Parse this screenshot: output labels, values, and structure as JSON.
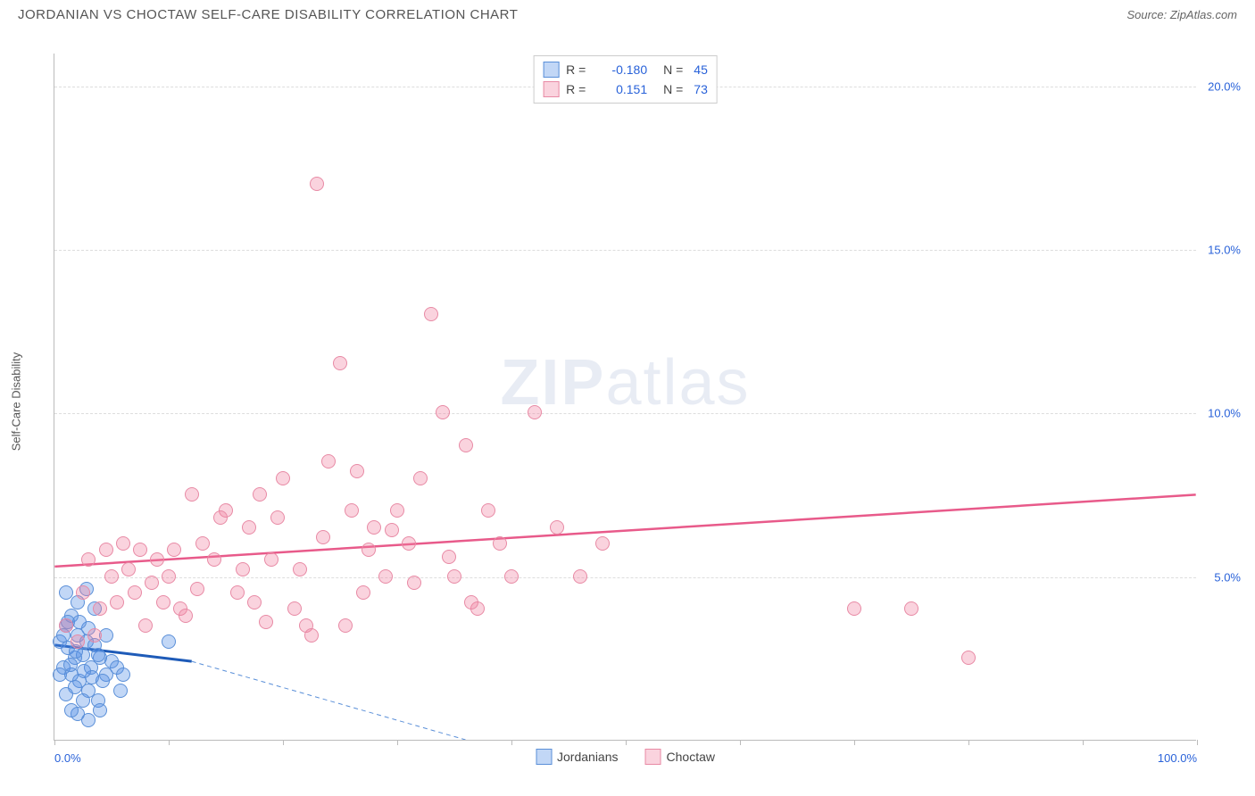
{
  "header": {
    "title": "JORDANIAN VS CHOCTAW SELF-CARE DISABILITY CORRELATION CHART",
    "source": "Source: ZipAtlas.com"
  },
  "chart": {
    "type": "scatter",
    "ylabel": "Self-Care Disability",
    "xlim": [
      0,
      100
    ],
    "ylim": [
      0,
      21
    ],
    "background_color": "#ffffff",
    "grid_color": "#dddddd",
    "axis_color": "#bbbbbb",
    "ytick_labels": [
      "5.0%",
      "10.0%",
      "15.0%",
      "20.0%"
    ],
    "ytick_values": [
      5,
      10,
      15,
      20
    ],
    "xtick_values": [
      0,
      10,
      20,
      30,
      40,
      50,
      60,
      70,
      80,
      90,
      100
    ],
    "xtick_labels_shown": {
      "0": "0.0%",
      "100": "100.0%"
    },
    "marker_radius": 8,
    "marker_stroke_width": 1,
    "series": [
      {
        "name": "Jordanians",
        "fill_color": "rgba(80, 140, 230, 0.35)",
        "stroke_color": "#5a8fd8",
        "R": "-0.180",
        "N": "45",
        "trend": {
          "x1": 0,
          "y1": 2.9,
          "x2": 12,
          "y2": 2.4,
          "color": "#1e5bb8",
          "width": 3,
          "dash": ""
        },
        "trend_extrap": {
          "x1": 12,
          "y1": 2.4,
          "x2": 36,
          "y2": 0.0,
          "color": "#5a8fd8",
          "width": 1,
          "dash": "5,4"
        },
        "points": [
          [
            0.5,
            3.0
          ],
          [
            0.8,
            2.2
          ],
          [
            1.0,
            3.5
          ],
          [
            1.2,
            2.8
          ],
          [
            1.5,
            2.0
          ],
          [
            1.8,
            2.5
          ],
          [
            2.0,
            3.2
          ],
          [
            2.2,
            1.8
          ],
          [
            2.5,
            2.6
          ],
          [
            2.8,
            3.0
          ],
          [
            3.0,
            1.5
          ],
          [
            3.2,
            2.2
          ],
          [
            3.5,
            2.9
          ],
          [
            3.8,
            1.2
          ],
          [
            4.0,
            2.5
          ],
          [
            1.0,
            1.4
          ],
          [
            1.5,
            3.8
          ],
          [
            4.5,
            2.0
          ],
          [
            5.0,
            2.4
          ],
          [
            2.0,
            4.2
          ],
          [
            3.5,
            4.0
          ],
          [
            1.0,
            4.5
          ],
          [
            2.5,
            1.2
          ],
          [
            0.5,
            2.0
          ],
          [
            1.8,
            1.6
          ],
          [
            4.2,
            1.8
          ],
          [
            3.0,
            3.4
          ],
          [
            5.5,
            2.2
          ],
          [
            2.0,
            0.8
          ],
          [
            3.0,
            0.6
          ],
          [
            4.0,
            0.9
          ],
          [
            1.5,
            0.9
          ],
          [
            6.0,
            2.0
          ],
          [
            2.8,
            4.6
          ],
          [
            1.2,
            3.6
          ],
          [
            0.8,
            3.2
          ],
          [
            2.2,
            3.6
          ],
          [
            3.8,
            2.6
          ],
          [
            10.0,
            3.0
          ],
          [
            4.5,
            3.2
          ],
          [
            5.8,
            1.5
          ],
          [
            3.3,
            1.9
          ],
          [
            2.6,
            2.1
          ],
          [
            1.9,
            2.7
          ],
          [
            1.4,
            2.3
          ]
        ]
      },
      {
        "name": "Choctaw",
        "fill_color": "rgba(240, 130, 160, 0.35)",
        "stroke_color": "#e88aa5",
        "R": "0.151",
        "N": "73",
        "trend": {
          "x1": 0,
          "y1": 5.3,
          "x2": 100,
          "y2": 7.5,
          "color": "#e85a8a",
          "width": 2.5,
          "dash": ""
        },
        "points": [
          [
            1.0,
            3.5
          ],
          [
            2.0,
            3.0
          ],
          [
            3.0,
            5.5
          ],
          [
            4.0,
            4.0
          ],
          [
            5.0,
            5.0
          ],
          [
            6.0,
            6.0
          ],
          [
            7.0,
            4.5
          ],
          [
            8.0,
            3.5
          ],
          [
            9.0,
            5.5
          ],
          [
            10.0,
            5.0
          ],
          [
            11.0,
            4.0
          ],
          [
            12.0,
            7.5
          ],
          [
            13.0,
            6.0
          ],
          [
            14.0,
            5.5
          ],
          [
            15.0,
            7.0
          ],
          [
            16.0,
            4.5
          ],
          [
            17.0,
            6.5
          ],
          [
            18.0,
            7.5
          ],
          [
            19.0,
            5.5
          ],
          [
            20.0,
            8.0
          ],
          [
            21.0,
            4.0
          ],
          [
            22.0,
            3.5
          ],
          [
            23.0,
            17.0
          ],
          [
            24.0,
            8.5
          ],
          [
            25.0,
            11.5
          ],
          [
            26.0,
            7.0
          ],
          [
            27.0,
            4.5
          ],
          [
            28.0,
            6.5
          ],
          [
            29.0,
            5.0
          ],
          [
            30.0,
            7.0
          ],
          [
            31.0,
            6.0
          ],
          [
            32.0,
            8.0
          ],
          [
            33.0,
            13.0
          ],
          [
            34.0,
            10.0
          ],
          [
            35.0,
            5.0
          ],
          [
            36.0,
            9.0
          ],
          [
            37.0,
            4.0
          ],
          [
            38.0,
            7.0
          ],
          [
            39.0,
            6.0
          ],
          [
            40.0,
            5.0
          ],
          [
            42.0,
            10.0
          ],
          [
            44.0,
            6.5
          ],
          [
            46.0,
            5.0
          ],
          [
            48.0,
            6.0
          ],
          [
            75.0,
            4.0
          ],
          [
            80.0,
            2.5
          ],
          [
            70.0,
            4.0
          ],
          [
            2.5,
            4.5
          ],
          [
            3.5,
            3.2
          ],
          [
            4.5,
            5.8
          ],
          [
            5.5,
            4.2
          ],
          [
            6.5,
            5.2
          ],
          [
            7.5,
            5.8
          ],
          [
            8.5,
            4.8
          ],
          [
            9.5,
            4.2
          ],
          [
            10.5,
            5.8
          ],
          [
            11.5,
            3.8
          ],
          [
            12.5,
            4.6
          ],
          [
            14.5,
            6.8
          ],
          [
            16.5,
            5.2
          ],
          [
            17.5,
            4.2
          ],
          [
            19.5,
            6.8
          ],
          [
            21.5,
            5.2
          ],
          [
            23.5,
            6.2
          ],
          [
            25.5,
            3.5
          ],
          [
            27.5,
            5.8
          ],
          [
            29.5,
            6.4
          ],
          [
            31.5,
            4.8
          ],
          [
            34.5,
            5.6
          ],
          [
            22.5,
            3.2
          ],
          [
            18.5,
            3.6
          ],
          [
            26.5,
            8.2
          ],
          [
            36.5,
            4.2
          ]
        ]
      }
    ],
    "legend_bottom": [
      {
        "label": "Jordanians",
        "fill": "rgba(80, 140, 230, 0.35)",
        "stroke": "#5a8fd8"
      },
      {
        "label": "Choctaw",
        "fill": "rgba(240, 130, 160, 0.35)",
        "stroke": "#e88aa5"
      }
    ],
    "watermark": {
      "part1": "ZIP",
      "part2": "atlas"
    }
  }
}
